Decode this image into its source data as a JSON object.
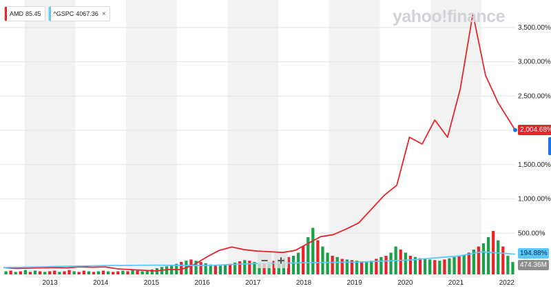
{
  "legend": [
    {
      "symbol": "AMD",
      "value": "85.45",
      "color": "#e8232a",
      "removable": false
    },
    {
      "symbol": "^GSPC",
      "value": "4067.36",
      "color": "#5ac8fa",
      "removable": true,
      "close_glyph": "×"
    }
  ],
  "brand": "yahoo!finance",
  "flags": {
    "amd_change": "2,004.68%",
    "gspc_change": "194.88%",
    "volume": "474.36M"
  },
  "zoom": {
    "minus": "−",
    "plus": "+"
  },
  "colors": {
    "amd_line": "#e8232a",
    "gspc_line": "#5ac8fa",
    "volume_up": "#1aa14a",
    "volume_down": "#e8232a",
    "alt_band": "#f2f2f2",
    "volume_flag_bg": "#8e8e8e"
  },
  "chart_data": {
    "type": "line",
    "x_labels": [
      "2013",
      "2014",
      "2015",
      "2016",
      "2017",
      "2018",
      "2019",
      "2020",
      "2021",
      "2022"
    ],
    "y_ticks": [
      "500.00%",
      "1,000.00%",
      "1,500.00%",
      "2,000.00%",
      "2,500.00%",
      "3,000.00%",
      "3,500.00%"
    ],
    "xlim": [
      "2012-08",
      "2022-09"
    ],
    "ylim": [
      -100,
      3850
    ],
    "y_tick_values": [
      500,
      1000,
      1500,
      2000,
      2500,
      3000,
      3500
    ],
    "series": [
      {
        "name": "AMD",
        "x": [
          "2012-08",
          "2012-11",
          "2013-02",
          "2013-05",
          "2013-08",
          "2013-11",
          "2014-02",
          "2014-05",
          "2014-08",
          "2014-11",
          "2015-02",
          "2015-05",
          "2015-08",
          "2015-11",
          "2016-02",
          "2016-05",
          "2016-08",
          "2016-11",
          "2017-02",
          "2017-05",
          "2017-08",
          "2017-11",
          "2018-02",
          "2018-05",
          "2018-08",
          "2018-11",
          "2019-02",
          "2019-05",
          "2019-08",
          "2019-11",
          "2020-02",
          "2020-05",
          "2020-08",
          "2020-11",
          "2021-02",
          "2021-05",
          "2021-08",
          "2021-11",
          "2022-02",
          "2022-05",
          "2022-09"
        ],
        "values": [
          0,
          -15,
          -10,
          -5,
          0,
          -5,
          10,
          5,
          10,
          -20,
          -30,
          -40,
          -50,
          -30,
          -30,
          40,
          150,
          250,
          300,
          260,
          240,
          230,
          220,
          250,
          350,
          450,
          480,
          560,
          650,
          850,
          1050,
          1200,
          1900,
          1800,
          2150,
          1900,
          2600,
          3700,
          2800,
          2400,
          2005
        ]
      },
      {
        "name": "^GSPC",
        "x": [
          "2012-08",
          "2013-08",
          "2014-08",
          "2015-08",
          "2016-08",
          "2017-08",
          "2018-08",
          "2019-08",
          "2020-08",
          "2021-08",
          "2022-01",
          "2022-09"
        ],
        "values": [
          0,
          15,
          30,
          35,
          30,
          60,
          70,
          80,
          110,
          170,
          230,
          195
        ]
      }
    ],
    "volume": {
      "label": "474.36M",
      "scale": {
        "min": 0,
        "max": 1
      },
      "values": [
        0.05,
        0.06,
        0.04,
        0.05,
        0.07,
        0.04,
        0.06,
        0.05,
        0.04,
        0.05,
        0.06,
        0.04,
        0.05,
        0.07,
        0.05,
        0.04,
        0.06,
        0.05,
        0.04,
        0.05,
        0.06,
        0.05,
        0.04,
        0.05,
        0.06,
        0.05,
        0.07,
        0.06,
        0.05,
        0.06,
        0.08,
        0.1,
        0.12,
        0.13,
        0.15,
        0.17,
        0.2,
        0.22,
        0.24,
        0.22,
        0.2,
        0.18,
        0.16,
        0.15,
        0.14,
        0.15,
        0.17,
        0.19,
        0.21,
        0.23,
        0.22,
        0.2,
        0.19,
        0.18,
        0.2,
        0.22,
        0.24,
        0.26,
        0.28,
        0.3,
        0.35,
        0.45,
        0.6,
        0.75,
        0.55,
        0.45,
        0.35,
        0.3,
        0.28,
        0.25,
        0.24,
        0.23,
        0.22,
        0.21,
        0.2,
        0.22,
        0.25,
        0.28,
        0.3,
        0.35,
        0.45,
        0.4,
        0.35,
        0.3,
        0.28,
        0.26,
        0.25,
        0.24,
        0.23,
        0.22,
        0.24,
        0.26,
        0.28,
        0.3,
        0.32,
        0.35,
        0.4,
        0.45,
        0.5,
        0.6,
        0.7,
        0.55,
        0.45,
        0.3,
        0.2
      ],
      "up": [
        true,
        false,
        true,
        false,
        true,
        false,
        true,
        false,
        true,
        false,
        false,
        true,
        false,
        false,
        true,
        false,
        false,
        true,
        false,
        true,
        false,
        true,
        false,
        false,
        true,
        false,
        true,
        false,
        true,
        true,
        true,
        true,
        true,
        true,
        true,
        true,
        false,
        true,
        false,
        true,
        false,
        true,
        true,
        false,
        true,
        true,
        false,
        true,
        false,
        true,
        false,
        true,
        true,
        false,
        true,
        false,
        true,
        true,
        false,
        true,
        true,
        false,
        true,
        true,
        false,
        true,
        true,
        false,
        true,
        false,
        true,
        false,
        true,
        false,
        true,
        true,
        false,
        true,
        false,
        true,
        true,
        false,
        true,
        false,
        true,
        false,
        true,
        true,
        false,
        true,
        false,
        true,
        true,
        false,
        true,
        false,
        true,
        false,
        true,
        true,
        false,
        true,
        false,
        true,
        true
      ]
    }
  }
}
